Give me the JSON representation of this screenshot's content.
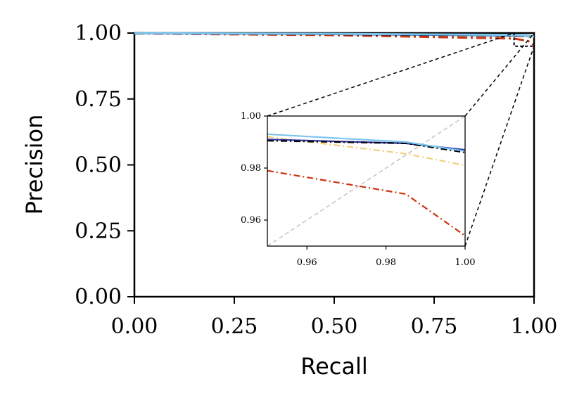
{
  "chart_data": {
    "type": "line",
    "xlabel": "Recall",
    "ylabel": "Precision",
    "xlim": [
      0,
      1
    ],
    "ylim": [
      0,
      1
    ],
    "xticks": [
      "0.00",
      "0.25",
      "0.50",
      "0.75",
      "1.00"
    ],
    "yticks": [
      "0.00",
      "0.25",
      "0.50",
      "0.75",
      "1.00"
    ],
    "grid": false,
    "legend": "none",
    "series": [
      {
        "color": "#f0d080",
        "dash": "dashdot",
        "x": [
          0.0,
          0.5,
          0.95,
          0.985,
          1.0
        ],
        "y": [
          0.999,
          0.995,
          0.992,
          0.9855,
          0.981
        ]
      },
      {
        "color": "#cc3311",
        "dash": "dashdot",
        "x": [
          0.0,
          0.5,
          0.95,
          0.985,
          1.0
        ],
        "y": [
          0.998,
          0.992,
          0.979,
          0.97,
          0.954
        ]
      },
      {
        "color": "#2b2f9e",
        "dash": "solid",
        "x": [
          0.0,
          0.5,
          0.95,
          0.985,
          1.0
        ],
        "y": [
          0.999,
          0.996,
          0.991,
          0.9895,
          0.987
        ]
      },
      {
        "color": "#000000",
        "dash": "dashdot",
        "x": [
          0.0,
          0.5,
          0.95,
          0.985,
          1.0
        ],
        "y": [
          0.999,
          0.996,
          0.9905,
          0.9895,
          0.986
        ]
      },
      {
        "color": "#7ac4ee",
        "dash": "solid",
        "x": [
          0.0,
          0.5,
          0.95,
          0.985,
          1.0
        ],
        "y": [
          0.999,
          0.997,
          0.993,
          0.99,
          0.9865
        ]
      }
    ],
    "inset": {
      "xlim": [
        0.95,
        1.0
      ],
      "ylim": [
        0.95,
        1.0
      ],
      "xticks": [
        "0.96",
        "0.98",
        "1.00"
      ],
      "yticks": [
        "0.96",
        "0.98",
        "1.00"
      ],
      "diagonal_color": "#bbbbbb"
    }
  }
}
